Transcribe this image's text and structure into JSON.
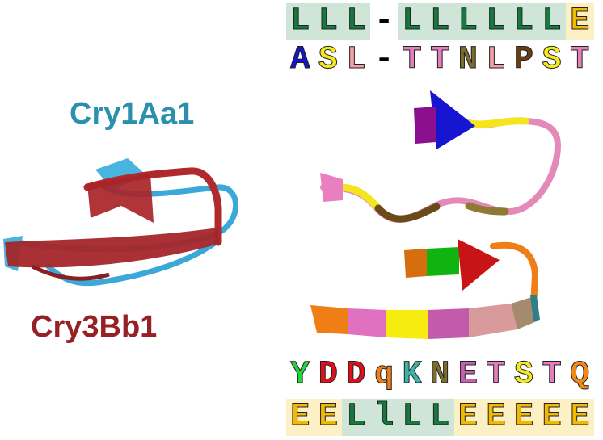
{
  "labels": {
    "protein_a": "Cry1Aa1",
    "protein_b": "Cry3Bb1",
    "color_a": "#2b8fae",
    "color_b": "#962125"
  },
  "top_sequence": {
    "structure": [
      {
        "char": "L",
        "bg": "#cfe5d7",
        "color": "#157a3d"
      },
      {
        "char": "L",
        "bg": "#cfe5d7",
        "color": "#157a3d"
      },
      {
        "char": "L",
        "bg": "#cfe5d7",
        "color": "#157a3d"
      },
      {
        "char": "-",
        "bg": "#ffffff",
        "color": "#000000"
      },
      {
        "char": "L",
        "bg": "#cfe5d7",
        "color": "#157a3d"
      },
      {
        "char": "L",
        "bg": "#cfe5d7",
        "color": "#157a3d"
      },
      {
        "char": "L",
        "bg": "#cfe5d7",
        "color": "#157a3d"
      },
      {
        "char": "L",
        "bg": "#cfe5d7",
        "color": "#157a3d"
      },
      {
        "char": "L",
        "bg": "#cfe5d7",
        "color": "#157a3d"
      },
      {
        "char": "L",
        "bg": "#cfe5d7",
        "color": "#157a3d"
      },
      {
        "char": "E",
        "bg": "#fdf0c4",
        "color": "#f3b800"
      }
    ],
    "residues": [
      {
        "char": "A",
        "color": "#1515c8"
      },
      {
        "char": "S",
        "color": "#f6ea1e"
      },
      {
        "char": "L",
        "color": "#f0a0a6"
      },
      {
        "char": "-",
        "color": "#000000"
      },
      {
        "char": "T",
        "color": "#e67dbd"
      },
      {
        "char": "T",
        "color": "#e67dbd"
      },
      {
        "char": "N",
        "color": "#7b6d2b"
      },
      {
        "char": "L",
        "color": "#f0a0a6"
      },
      {
        "char": "P",
        "color": "#6a3d12"
      },
      {
        "char": "S",
        "color": "#f6ea1e"
      },
      {
        "char": "T",
        "color": "#e67dbd"
      }
    ]
  },
  "bottom_sequence": {
    "residues": [
      {
        "char": "Y",
        "color": "#24d43b"
      },
      {
        "char": "D",
        "color": "#e0101a"
      },
      {
        "char": "D",
        "color": "#e0101a"
      },
      {
        "char": "q",
        "color": "#f07e17"
      },
      {
        "char": "K",
        "color": "#3db2a9"
      },
      {
        "char": "N",
        "color": "#7b6d2b"
      },
      {
        "char": "E",
        "color": "#c760b0"
      },
      {
        "char": "T",
        "color": "#e67dbd"
      },
      {
        "char": "S",
        "color": "#f6ea1e"
      },
      {
        "char": "T",
        "color": "#e67dbd"
      },
      {
        "char": "Q",
        "color": "#f08a16"
      }
    ],
    "structure": [
      {
        "char": "E",
        "bg": "#fdf0c4",
        "color": "#f3b800"
      },
      {
        "char": "E",
        "bg": "#fdf0c4",
        "color": "#f3b800"
      },
      {
        "char": "L",
        "bg": "#cfe5d7",
        "color": "#157a3d"
      },
      {
        "char": "l",
        "bg": "#cfe5d7",
        "color": "#157a3d"
      },
      {
        "char": "L",
        "bg": "#cfe5d7",
        "color": "#157a3d"
      },
      {
        "char": "L",
        "bg": "#cfe5d7",
        "color": "#157a3d"
      },
      {
        "char": "E",
        "bg": "#fdf0c4",
        "color": "#f3b800"
      },
      {
        "char": "E",
        "bg": "#fdf0c4",
        "color": "#f3b800"
      },
      {
        "char": "E",
        "bg": "#fdf0c4",
        "color": "#f3b800"
      },
      {
        "char": "E",
        "bg": "#fdf0c4",
        "color": "#f3b800"
      },
      {
        "char": "E",
        "bg": "#fdf0c4",
        "color": "#f3b800"
      }
    ]
  }
}
